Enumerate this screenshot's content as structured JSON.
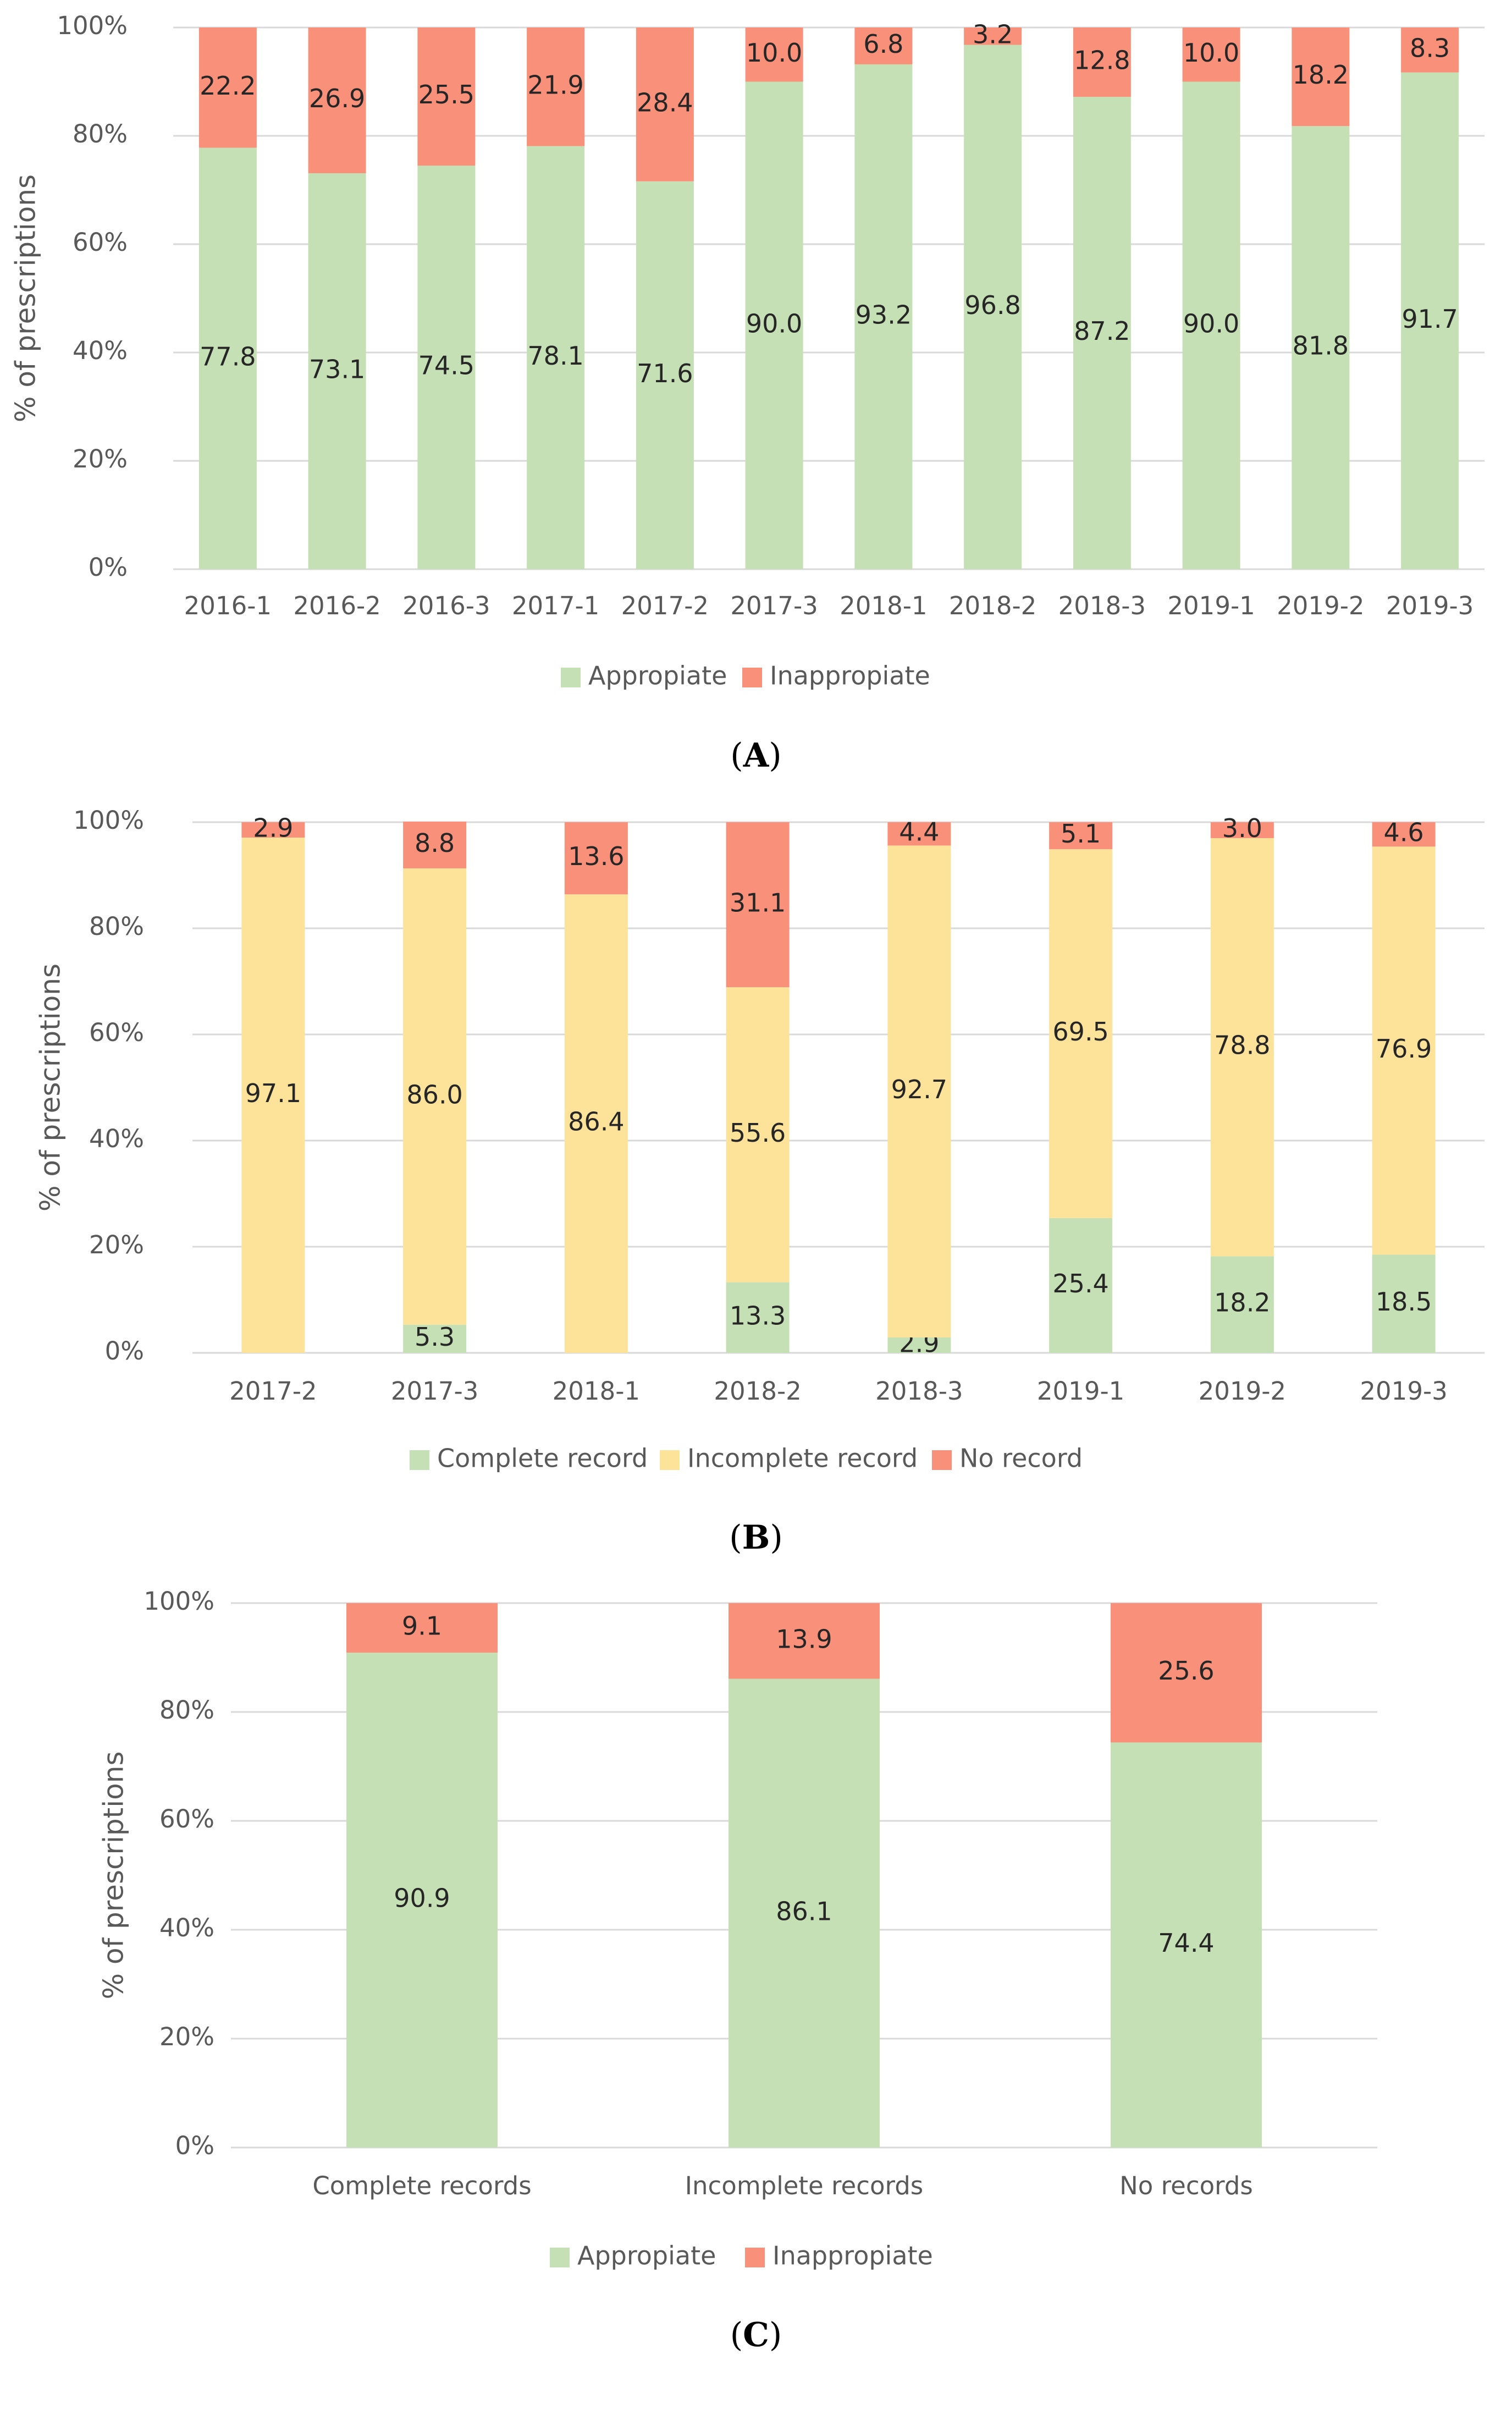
{
  "colors": {
    "appropriate": "#c5e0b4",
    "inappropriate": "#f8907a",
    "complete": "#c5e0b4",
    "incomplete": "#fde39a",
    "norecord": "#f8907a"
  },
  "chart_data": [
    {
      "type": "bar",
      "stacked": true,
      "panel_letter": "A",
      "ylabel": "% of prescriptions",
      "ylim": [
        0,
        100
      ],
      "yticks": [
        "0%",
        "20%",
        "40%",
        "60%",
        "80%",
        "100%"
      ],
      "grid": true,
      "legend_position": "bottom",
      "categories": [
        "2016-1",
        "2016-2",
        "2016-3",
        "2017-1",
        "2017-2",
        "2017-3",
        "2018-1",
        "2018-2",
        "2018-3",
        "2019-1",
        "2019-2",
        "2019-3"
      ],
      "series": [
        {
          "name": "Appropiate",
          "color_key": "appropriate",
          "values": [
            77.8,
            73.1,
            74.5,
            78.1,
            71.6,
            90.0,
            93.2,
            96.8,
            87.2,
            90.0,
            81.8,
            91.7
          ],
          "labels": [
            "77.8",
            "73.1",
            "74.5",
            "78.1",
            "71.6",
            "90.0",
            "93.2",
            "96.8",
            "87.2",
            "90.0",
            "81.8",
            "91.7"
          ]
        },
        {
          "name": "Inappropiate",
          "color_key": "inappropriate",
          "values": [
            22.2,
            26.9,
            25.5,
            21.9,
            28.4,
            10.0,
            6.8,
            3.2,
            12.8,
            10.0,
            18.2,
            8.3
          ],
          "labels": [
            "22.2",
            "26.9",
            "25.5",
            "21.9",
            "28.4",
            "10.0",
            "6.8",
            "3.2",
            "12.8",
            "10.0",
            "18.2",
            "8.3"
          ]
        }
      ]
    },
    {
      "type": "bar",
      "stacked": true,
      "panel_letter": "B",
      "ylabel": "% of prescriptions",
      "ylim": [
        0,
        100
      ],
      "yticks": [
        "0%",
        "20%",
        "40%",
        "60%",
        "80%",
        "100%"
      ],
      "grid": true,
      "legend_position": "bottom",
      "categories": [
        "2017-2",
        "2017-3",
        "2018-1",
        "2018-2",
        "2018-3",
        "2019-1",
        "2019-2",
        "2019-3"
      ],
      "series": [
        {
          "name": "Complete record",
          "color_key": "complete",
          "values": [
            0,
            5.3,
            0,
            13.3,
            2.9,
            25.4,
            18.2,
            18.5
          ],
          "labels": [
            "",
            "5.3",
            "",
            "13.3",
            "2.9",
            "25.4",
            "18.2",
            "18.5"
          ]
        },
        {
          "name": "Incomplete record",
          "color_key": "incomplete",
          "values": [
            97.1,
            86.0,
            86.4,
            55.6,
            92.7,
            69.5,
            78.8,
            76.9
          ],
          "labels": [
            "97.1",
            "86.0",
            "86.4",
            "55.6",
            "92.7",
            "69.5",
            "78.8",
            "76.9"
          ]
        },
        {
          "name": "No record",
          "color_key": "norecord",
          "values": [
            2.9,
            8.8,
            13.6,
            31.1,
            4.4,
            5.1,
            3.0,
            4.6
          ],
          "labels": [
            "2.9",
            "8.8",
            "13.6",
            "31.1",
            "4.4",
            "5.1",
            "3.0",
            "4.6"
          ]
        }
      ]
    },
    {
      "type": "bar",
      "stacked": true,
      "panel_letter": "C",
      "ylabel": "% of prescriptions",
      "ylim": [
        0,
        100
      ],
      "yticks": [
        "0%",
        "20%",
        "40%",
        "60%",
        "80%",
        "100%"
      ],
      "grid": true,
      "legend_position": "bottom",
      "categories": [
        "Complete records",
        "Incomplete records",
        "No records"
      ],
      "series": [
        {
          "name": "Appropiate",
          "color_key": "appropriate",
          "values": [
            90.9,
            86.1,
            74.4
          ],
          "labels": [
            "90.9",
            "86.1",
            "74.4"
          ]
        },
        {
          "name": "Inappropiate",
          "color_key": "inappropriate",
          "values": [
            9.1,
            13.9,
            25.6
          ],
          "labels": [
            "9.1",
            "13.9",
            "25.6"
          ]
        }
      ]
    }
  ]
}
